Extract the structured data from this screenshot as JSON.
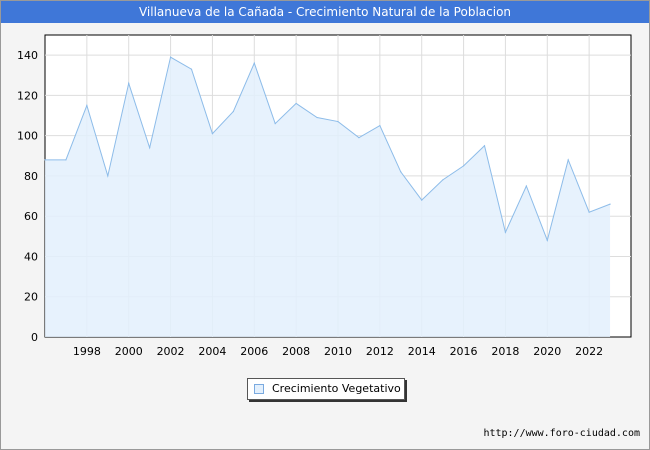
{
  "title": "Villanueva de la Cañada - Crecimiento Natural de la Poblacion",
  "legend_label": "Crecimiento Vegetativo",
  "source_url": "http://www.foro-ciudad.com",
  "colors": {
    "title_bar": "#3f77d8",
    "area_fill": "#e3f0fd",
    "line": "#8dbce9"
  },
  "chart_data": {
    "type": "area",
    "title": "Villanueva de la Cañada - Crecimiento Natural de la Poblacion",
    "xlabel": "",
    "ylabel": "",
    "xlim": [
      1996,
      2024
    ],
    "ylim": [
      0,
      150
    ],
    "x_ticks": [
      1998,
      2000,
      2002,
      2004,
      2006,
      2008,
      2010,
      2012,
      2014,
      2016,
      2018,
      2020,
      2022
    ],
    "y_ticks": [
      0,
      20,
      40,
      60,
      80,
      100,
      120,
      140
    ],
    "grid": true,
    "legend_position": "bottom",
    "series": [
      {
        "name": "Crecimiento Vegetativo",
        "x": [
          1996,
          1997,
          1998,
          1999,
          2000,
          2001,
          2002,
          2003,
          2004,
          2005,
          2006,
          2007,
          2008,
          2009,
          2010,
          2011,
          2012,
          2013,
          2014,
          2015,
          2016,
          2017,
          2018,
          2019,
          2020,
          2021,
          2022,
          2023
        ],
        "values": [
          88,
          88,
          115,
          80,
          126,
          94,
          139,
          133,
          101,
          112,
          136,
          106,
          116,
          109,
          107,
          99,
          105,
          82,
          68,
          78,
          85,
          95,
          52,
          75,
          48,
          88,
          62,
          66
        ]
      }
    ]
  }
}
